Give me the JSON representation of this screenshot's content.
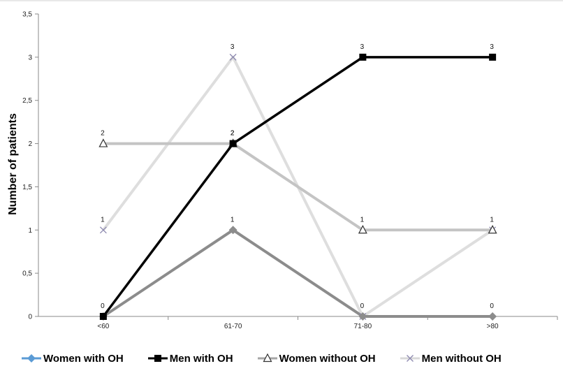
{
  "chart_data": {
    "type": "line",
    "title": "",
    "xlabel": "",
    "ylabel": "Number of patients",
    "categories": [
      "<60",
      "61-70",
      "71-80",
      ">80"
    ],
    "ylim": [
      0,
      3.5
    ],
    "yticks": [
      "0",
      "0,5",
      "1",
      "1,5",
      "2",
      "2,5",
      "3",
      "3,5"
    ],
    "grid": false,
    "legend_position": "bottom",
    "series": [
      {
        "name": "Women with OH",
        "values": [
          0,
          1,
          0,
          0
        ],
        "labels": [
          "0",
          "1",
          "0",
          "0"
        ],
        "color": "#8c8c8c",
        "legend_color": "#5b9bd5",
        "marker": "diamond"
      },
      {
        "name": "Men with OH",
        "values": [
          0,
          2,
          3,
          3
        ],
        "labels": [
          "",
          "2",
          "3",
          "3"
        ],
        "color": "#000000",
        "legend_color": "#000000",
        "marker": "square"
      },
      {
        "name": "Women without OH",
        "values": [
          2,
          2,
          1,
          1
        ],
        "labels": [
          "2",
          "2",
          "1",
          "1"
        ],
        "color": "#c4c4c4",
        "legend_color": "#a6a6a6",
        "marker": "triangle"
      },
      {
        "name": "Men without OH",
        "values": [
          1,
          3,
          0,
          1
        ],
        "labels": [
          "1",
          "3",
          "",
          ""
        ],
        "color": "#dedede",
        "legend_color": "#d8d8d8",
        "marker": "x"
      }
    ]
  }
}
